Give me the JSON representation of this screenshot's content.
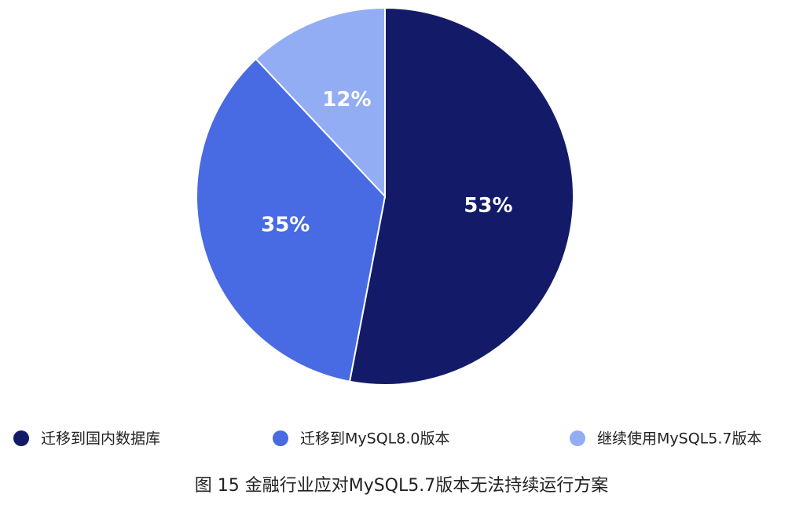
{
  "chart_data": {
    "type": "pie",
    "title": "图 15 金融行业应对MySQL5.7版本无法持续运行方案",
    "categories": [
      "迁移到国内数据库",
      "迁移到MySQL8.0版本",
      "继续使用MySQL5.7版本"
    ],
    "values": [
      53,
      35,
      12
    ],
    "value_labels": [
      "53%",
      "35%",
      "12%"
    ],
    "colors": [
      "#131b69",
      "#486ae2",
      "#93adf4"
    ]
  }
}
